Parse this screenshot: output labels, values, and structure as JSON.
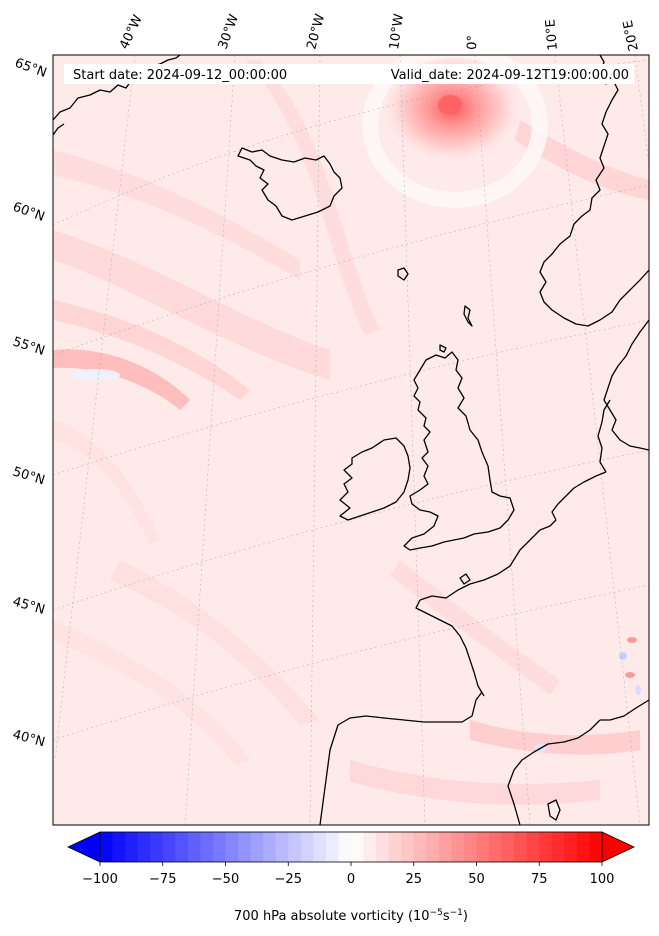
{
  "map": {
    "start_date_text": "Start date: 2024-09-12_00:00:00",
    "valid_date_text": "Valid_date: 2024-09-12T19:00:00.00",
    "lon_labels": [
      "40°W",
      "30°W",
      "20°W",
      "10°W",
      "0°",
      "10°E",
      "20°E"
    ],
    "lat_labels": [
      "65°N",
      "60°N",
      "55°N",
      "50°N",
      "45°N",
      "40°N"
    ],
    "field": "700 hPa absolute vorticity",
    "region": "North Atlantic and Western Europe"
  },
  "colorbar": {
    "title_prefix": "700 hPa absolute vorticity (10",
    "title_exp1": "−5",
    "title_mid": "s",
    "title_exp2": "−1",
    "title_suffix": ")",
    "min": -100,
    "max": 100,
    "ticks": [
      "−100",
      "−75",
      "−50",
      "−25",
      "0",
      "25",
      "50",
      "75",
      "100"
    ],
    "tick_values": [
      -100,
      -75,
      -50,
      -25,
      0,
      25,
      50,
      75,
      100
    ],
    "low_color": "#0000ff",
    "mid_color": "#ffffff",
    "high_color": "#ff0000",
    "extend": "both"
  },
  "colors": {
    "coastline": "#000000",
    "field_background": "#ffeaea"
  }
}
